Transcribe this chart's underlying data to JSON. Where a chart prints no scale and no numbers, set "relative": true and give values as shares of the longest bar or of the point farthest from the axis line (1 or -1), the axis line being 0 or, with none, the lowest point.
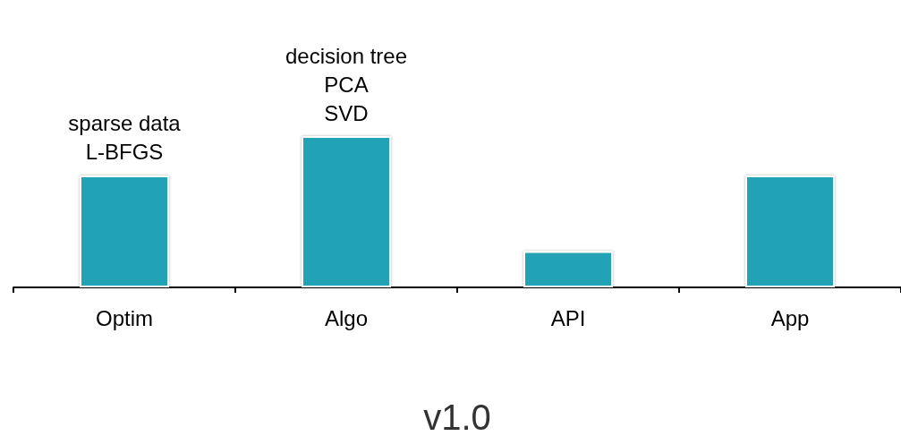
{
  "chart_data": {
    "type": "bar",
    "relative": true,
    "categories": [
      "Optim",
      "Algo",
      "API",
      "App"
    ],
    "values": [
      0.74,
      1,
      0.24,
      0.74
    ],
    "color": "#21a3b5",
    "xlabel": "v1.0",
    "annotations": [
      {
        "text": "sparse data\nL-BFGS",
        "x": "Optim",
        "y": 0.74
      },
      {
        "text": "decision tree\nPCA\nSVD",
        "x": "Algo",
        "y": 1
      }
    ]
  }
}
